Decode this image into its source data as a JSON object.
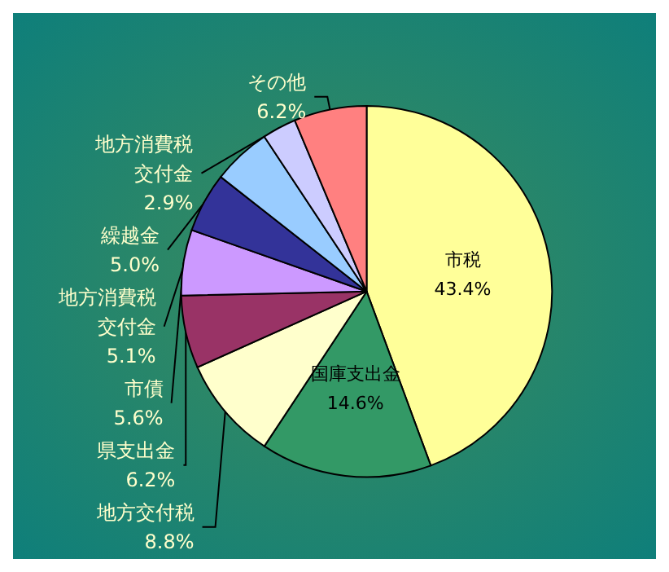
{
  "chart_data": {
    "type": "pie",
    "categories": [
      "市税",
      "国庫支出金",
      "地方交付税",
      "県支出金",
      "市債",
      "地方消費税交付金",
      "繰越金",
      "地方消費税交付金",
      "その他"
    ],
    "values": [
      43.4,
      14.6,
      8.8,
      6.2,
      5.6,
      5.1,
      5.0,
      2.9,
      6.2
    ],
    "value_labels": [
      "43.4%",
      "14.6%",
      "8.8%",
      "6.2%",
      "5.6%",
      "5.1%",
      "5.0%",
      "2.9%",
      "6.2%"
    ],
    "colors": [
      "#ffff99",
      "#339966",
      "#ffffcc",
      "#993366",
      "#cc99ff",
      "#333399",
      "#99ccff",
      "#ccccff",
      "#ff8080"
    ],
    "legend": false
  }
}
